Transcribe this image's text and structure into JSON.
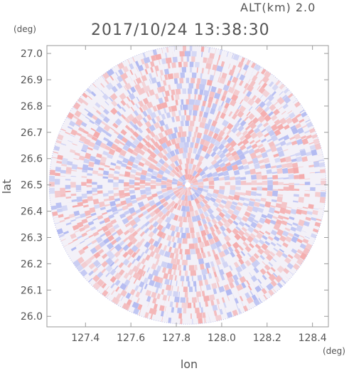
{
  "header": {
    "altitude_label": "ALT(km) 2.0",
    "timestamp": "2017/10/24 13:38:30"
  },
  "colors": {
    "positive": "#f4a3a3",
    "negative": "#aab3f0",
    "frame": "#9a9a9a",
    "text": "#555555"
  },
  "chart_data": {
    "type": "heatmap",
    "title": "2017/10/24 13:38:30",
    "subtitle": "ALT(km) 2.0",
    "xlabel": "lon",
    "ylabel": "lat",
    "x_unit": "(deg)",
    "y_unit": "(deg)",
    "xlim": [
      127.23,
      128.47
    ],
    "ylim": [
      25.96,
      27.03
    ],
    "x_ticks": [
      "127.4",
      "127.6",
      "127.8",
      "128.0",
      "128.2",
      "128.4"
    ],
    "y_ticks": [
      "27.0",
      "26.9",
      "26.8",
      "26.7",
      "26.6",
      "26.5",
      "26.4",
      "26.3",
      "26.2",
      "26.1",
      "26.0"
    ],
    "radar_center": [
      127.85,
      26.5
    ],
    "radar_radius_lat_deg": 0.53,
    "radar_radius_lon_deg": 0.61,
    "color_scale": [
      "negative",
      "positive"
    ]
  }
}
